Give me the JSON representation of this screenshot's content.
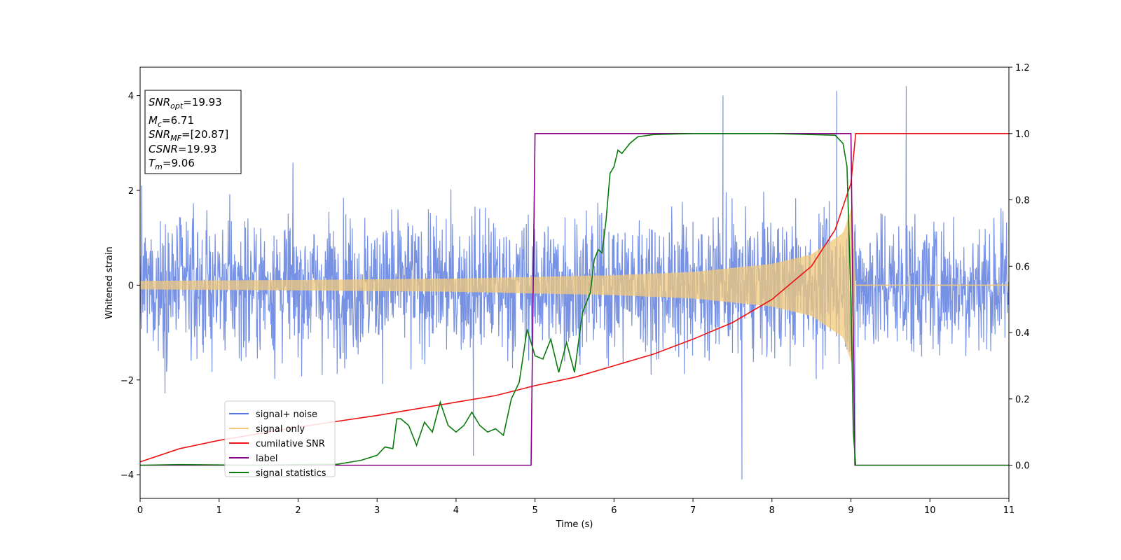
{
  "chart_data": {
    "type": "line",
    "xlabel": "Time (s)",
    "ylabel_left": "Whitened strain",
    "ylabel_right": "",
    "xlim": [
      0,
      11
    ],
    "ylim_left": [
      -4.5,
      4.6
    ],
    "ylim_right": [
      -0.1,
      1.2
    ],
    "x_ticks": [
      0,
      1,
      2,
      3,
      4,
      5,
      6,
      7,
      8,
      9,
      10,
      11
    ],
    "y_ticks_left": [
      -4,
      -2,
      0,
      2,
      4
    ],
    "y_ticks_right": [
      0.0,
      0.2,
      0.4,
      0.6,
      0.8,
      1.0,
      1.2
    ],
    "x_tick_labels": [
      "0",
      "1",
      "2",
      "3",
      "4",
      "5",
      "6",
      "7",
      "8",
      "9",
      "10",
      "11"
    ],
    "y_tick_labels_left": [
      "−4",
      "−2",
      "0",
      "2",
      "4"
    ],
    "y_tick_labels_right": [
      "0.0",
      "0.2",
      "0.4",
      "0.6",
      "0.8",
      "1.0",
      "1.2"
    ],
    "grid": false,
    "legend_placement": "lower-left",
    "annotation": {
      "snr_opt": "19.93",
      "mc": "6.71",
      "snr_mf": "[20.87]",
      "csnr": "19.93",
      "tm": "9.06"
    },
    "series": [
      {
        "name": "signal+ noise",
        "color": "#5577dd",
        "axis": "left",
        "kind": "noise",
        "noise_envelope": [
          -2.7,
          2.7
        ],
        "noise_extremes": [
          -4.1,
          4.2
        ],
        "extremes_samples": [
          [
            7.38,
            4.0
          ],
          [
            8.82,
            4.1
          ],
          [
            9.7,
            4.2
          ],
          [
            7.62,
            -4.1
          ],
          [
            9.05,
            -3.7
          ],
          [
            4.22,
            -3.6
          ]
        ]
      },
      {
        "name": "signal only",
        "color": "#f2c879",
        "axis": "left",
        "kind": "chirp",
        "amplitude_at_t": [
          [
            0,
            0.09
          ],
          [
            2,
            0.11
          ],
          [
            4,
            0.14
          ],
          [
            6,
            0.21
          ],
          [
            7,
            0.28
          ],
          [
            8,
            0.45
          ],
          [
            8.5,
            0.65
          ],
          [
            8.9,
            1.1
          ],
          [
            9.02,
            1.7
          ],
          [
            9.06,
            0
          ]
        ],
        "after_merger_value": 0
      },
      {
        "name": "cumilative SNR",
        "color": "#ee1111",
        "axis": "right",
        "points": [
          [
            0,
            0.01
          ],
          [
            0.5,
            0.05
          ],
          [
            1,
            0.075
          ],
          [
            2,
            0.115
          ],
          [
            3,
            0.15
          ],
          [
            4,
            0.19
          ],
          [
            4.5,
            0.21
          ],
          [
            5,
            0.24
          ],
          [
            5.5,
            0.265
          ],
          [
            6,
            0.3
          ],
          [
            6.5,
            0.335
          ],
          [
            7,
            0.38
          ],
          [
            7.5,
            0.43
          ],
          [
            8,
            0.5
          ],
          [
            8.5,
            0.6
          ],
          [
            8.8,
            0.71
          ],
          [
            9.0,
            0.85
          ],
          [
            9.06,
            1.0
          ],
          [
            11,
            1.0
          ]
        ]
      },
      {
        "name": "label",
        "color": "#880088",
        "axis": "right",
        "points": [
          [
            0,
            0
          ],
          [
            4.95,
            0
          ],
          [
            5.0,
            1.0
          ],
          [
            9.0,
            1.0
          ],
          [
            9.05,
            0
          ],
          [
            11,
            0
          ]
        ]
      },
      {
        "name": "signal statistics",
        "color": "#0a7a0a",
        "axis": "right",
        "points": [
          [
            0,
            0.0
          ],
          [
            0.5,
            0.002
          ],
          [
            1,
            0.001
          ],
          [
            1.5,
            0.0
          ],
          [
            2,
            0.002
          ],
          [
            2.5,
            0.003
          ],
          [
            2.8,
            0.015
          ],
          [
            3.0,
            0.03
          ],
          [
            3.1,
            0.055
          ],
          [
            3.2,
            0.05
          ],
          [
            3.25,
            0.14
          ],
          [
            3.3,
            0.14
          ],
          [
            3.4,
            0.12
          ],
          [
            3.5,
            0.06
          ],
          [
            3.6,
            0.13
          ],
          [
            3.7,
            0.1
          ],
          [
            3.8,
            0.19
          ],
          [
            3.9,
            0.12
          ],
          [
            4.0,
            0.1
          ],
          [
            4.1,
            0.12
          ],
          [
            4.2,
            0.16
          ],
          [
            4.3,
            0.12
          ],
          [
            4.4,
            0.1
          ],
          [
            4.5,
            0.11
          ],
          [
            4.6,
            0.09
          ],
          [
            4.7,
            0.2
          ],
          [
            4.8,
            0.25
          ],
          [
            4.9,
            0.41
          ],
          [
            5.0,
            0.33
          ],
          [
            5.1,
            0.32
          ],
          [
            5.2,
            0.38
          ],
          [
            5.3,
            0.28
          ],
          [
            5.4,
            0.37
          ],
          [
            5.5,
            0.28
          ],
          [
            5.6,
            0.46
          ],
          [
            5.7,
            0.52
          ],
          [
            5.75,
            0.62
          ],
          [
            5.8,
            0.65
          ],
          [
            5.85,
            0.64
          ],
          [
            5.9,
            0.74
          ],
          [
            5.95,
            0.88
          ],
          [
            6.0,
            0.9
          ],
          [
            6.05,
            0.95
          ],
          [
            6.1,
            0.94
          ],
          [
            6.2,
            0.97
          ],
          [
            6.3,
            0.99
          ],
          [
            6.5,
            0.997
          ],
          [
            7,
            1.0
          ],
          [
            8,
            1.0
          ],
          [
            8.8,
            0.995
          ],
          [
            8.9,
            0.97
          ],
          [
            8.95,
            0.9
          ],
          [
            9.0,
            0.5
          ],
          [
            9.03,
            0.1
          ],
          [
            9.06,
            0.0
          ],
          [
            11,
            0.0
          ]
        ]
      }
    ]
  }
}
